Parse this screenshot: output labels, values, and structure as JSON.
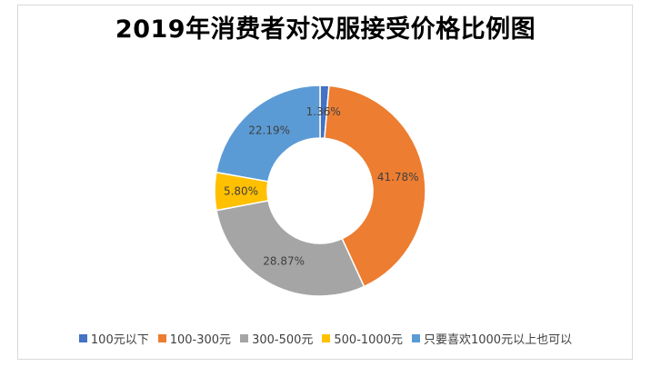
{
  "chart_data": {
    "type": "pie",
    "title": "2019年消费者对汉服接受价格比例图",
    "categories": [
      "100元以下",
      "100-300元",
      "300-500元",
      "500-1000元",
      "只要喜欢1000元以上也可以"
    ],
    "values": [
      1.36,
      41.78,
      28.87,
      5.8,
      22.19
    ],
    "labels": [
      "1.36%",
      "41.78%",
      "28.87%",
      "5.80%",
      "22.19%"
    ],
    "colors": [
      "#4472c4",
      "#ed7d31",
      "#a5a5a5",
      "#ffc000",
      "#5b9bd5"
    ],
    "legend_position": "bottom",
    "donut": true
  }
}
